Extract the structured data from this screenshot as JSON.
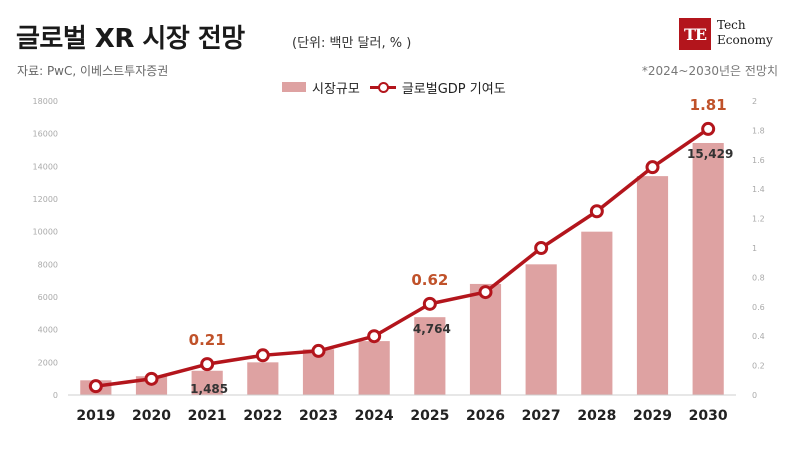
{
  "header": {
    "title": "글로벌 XR 시장 전망",
    "unit": "(단위: 백만 달러, % )",
    "source": "자료: PwC, 이베스트투자증권",
    "note": "*2024~2030년은 전망치"
  },
  "logo": {
    "mark": "TE",
    "line1": "Tech",
    "line2": "Economy"
  },
  "colors": {
    "bar": "#dea2a2",
    "line": "#b3151c",
    "highlight_label": "#c0522a"
  },
  "chart_data": {
    "type": "bar+line",
    "categories": [
      "2019",
      "2020",
      "2021",
      "2022",
      "2023",
      "2024",
      "2025",
      "2026",
      "2027",
      "2028",
      "2029",
      "2030"
    ],
    "series": [
      {
        "name": "시장규모",
        "type": "bar",
        "axis": "left",
        "values": [
          900,
          1150,
          1485,
          2000,
          2800,
          3300,
          4764,
          6800,
          8000,
          10000,
          13400,
          15429
        ]
      },
      {
        "name": "글로벌GDP 기여도",
        "type": "line",
        "axis": "right",
        "values": [
          0.06,
          0.11,
          0.21,
          0.27,
          0.3,
          0.4,
          0.62,
          0.7,
          1.0,
          1.25,
          1.55,
          1.81
        ]
      }
    ],
    "bar_labels": [
      {
        "category": "2021",
        "text": "1,485"
      },
      {
        "category": "2025",
        "text": "4,764"
      },
      {
        "category": "2030",
        "text": "15,429"
      }
    ],
    "line_labels": [
      {
        "category": "2021",
        "text": "0.21"
      },
      {
        "category": "2025",
        "text": "0.62"
      },
      {
        "category": "2030",
        "text": "1.81"
      }
    ],
    "ylim_left": [
      0,
      18000
    ],
    "yticks_left": [
      "0",
      "2000",
      "4000",
      "6000",
      "8000",
      "10000",
      "12000",
      "14000",
      "16000",
      "18000"
    ],
    "ylim_right": [
      0,
      2
    ],
    "yticks_right": [
      "0",
      "0.2",
      "0.4",
      "0.6",
      "0.8",
      "1",
      "1.2",
      "1.4",
      "1.6",
      "1.8",
      "2"
    ],
    "legend_position": "top-center",
    "grid": false
  }
}
